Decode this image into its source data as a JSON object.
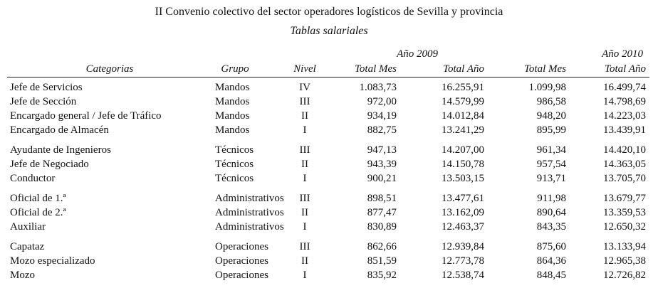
{
  "title": "II Convenio colectivo del sector operadores logísticos de Sevilla y provincia",
  "subtitle": "Tablas salariales",
  "years": [
    "Año 2009",
    "Año 2010"
  ],
  "headers": {
    "categoria": "Categorias",
    "grupo": "Grupo",
    "nivel": "Nivel",
    "mes_2009": "Total Mes",
    "ano_2009": "Total Año",
    "mes_2010": "Total Mes",
    "ano_2010": "Total Año"
  },
  "rows": [
    [
      "Jefe de Servicios",
      "Mandos",
      "IV",
      "1.083,73",
      "16.255,91",
      "1.099,98",
      "16.499,74"
    ],
    [
      "Jefe de Sección",
      "Mandos",
      "III",
      "972,00",
      "14.579,99",
      "986,58",
      "14.798,69"
    ],
    [
      "Encargado general / Jefe de Tráfico",
      "Mandos",
      "II",
      "934,19",
      "14.012,84",
      "948,20",
      "14.223,03"
    ],
    [
      "Encargado de Almacén",
      "Mandos",
      "I",
      "882,75",
      "13.241,29",
      "895,99",
      "13.439,91"
    ],
    [
      "Ayudante de Ingenieros",
      "Técnicos",
      "III",
      "947,13",
      "14.207,00",
      "961,34",
      "14.420,10"
    ],
    [
      "Jefe de Negociado",
      "Técnicos",
      "II",
      "943,39",
      "14.150,78",
      "957,54",
      "14.363,05"
    ],
    [
      "Conductor",
      "Técnicos",
      "I",
      "900,21",
      "13.503,15",
      "913,71",
      "13.705,70"
    ],
    [
      "Oficial de 1.ª",
      "Administrativos",
      "III",
      "898,51",
      "13.477,61",
      "911,98",
      "13.679,77"
    ],
    [
      "Oficial de 2.ª",
      "Administrativos",
      "II",
      "877,47",
      "13.162,09",
      "890,64",
      "13.359,53"
    ],
    [
      "Auxiliar",
      "Administrativos",
      "I",
      "830,89",
      "12.463,37",
      "843,35",
      "12.650,32"
    ],
    [
      "Capataz",
      "Operaciones",
      "III",
      "862,66",
      "12.939,84",
      "875,60",
      "13.133,94"
    ],
    [
      "Mozo especializado",
      "Operaciones",
      "II",
      "851,59",
      "12.773,78",
      "864,36",
      "12.965,38"
    ],
    [
      "Mozo",
      "Operaciones",
      "I",
      "835,92",
      "12.538,74",
      "848,45",
      "12.726,82"
    ]
  ]
}
